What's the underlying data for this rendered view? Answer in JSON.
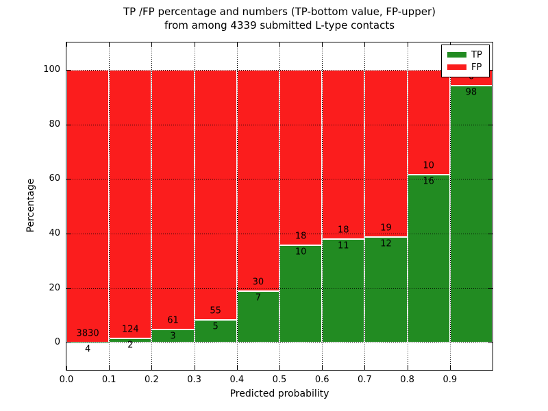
{
  "title": {
    "line1": "TP /FP percentage and numbers (TP-bottom value, FP-upper)",
    "line2": "from among 4339 submitted L-type contacts"
  },
  "chart_data": {
    "type": "bar",
    "stacked": true,
    "normalization": "each 0.1-wide probability bin scaled to 100%",
    "title": "TP /FP percentage and numbers (TP-bottom value, FP-upper) from among 4339 submitted L-type contacts",
    "xlabel": "Predicted probability",
    "ylabel": "Percentage",
    "total_contacts": 4339,
    "bin_edges": [
      0.0,
      0.1,
      0.2,
      0.3,
      0.4,
      0.5,
      0.6,
      0.7,
      0.8,
      0.9,
      1.0
    ],
    "categories": [
      "0.0-0.1",
      "0.1-0.2",
      "0.2-0.3",
      "0.3-0.4",
      "0.4-0.5",
      "0.5-0.6",
      "0.6-0.7",
      "0.7-0.8",
      "0.8-0.9",
      "0.9-1.0"
    ],
    "series": [
      {
        "name": "TP",
        "color": "#228b22",
        "counts": [
          4,
          2,
          3,
          5,
          7,
          10,
          11,
          12,
          16,
          98
        ]
      },
      {
        "name": "FP",
        "color": "#fb1d1d",
        "counts": [
          3830,
          124,
          61,
          55,
          30,
          18,
          18,
          19,
          10,
          6
        ]
      }
    ],
    "tp_percent_per_bin": [
      0.1,
      1.6,
      4.7,
      8.3,
      18.9,
      35.7,
      37.9,
      38.7,
      61.5,
      94.2
    ],
    "xticks": [
      "0.0",
      "0.1",
      "0.2",
      "0.3",
      "0.4",
      "0.5",
      "0.6",
      "0.7",
      "0.8",
      "0.9"
    ],
    "yticks": [
      0,
      20,
      40,
      60,
      80,
      100
    ],
    "xlim": [
      0.0,
      1.0
    ],
    "ylim": [
      -10,
      110
    ],
    "grid": true,
    "grid_style": "dotted",
    "legend": {
      "position": "upper right",
      "entries": [
        {
          "label": "TP",
          "color": "#228b22"
        },
        {
          "label": "FP",
          "color": "#fb1d1d"
        }
      ]
    }
  }
}
